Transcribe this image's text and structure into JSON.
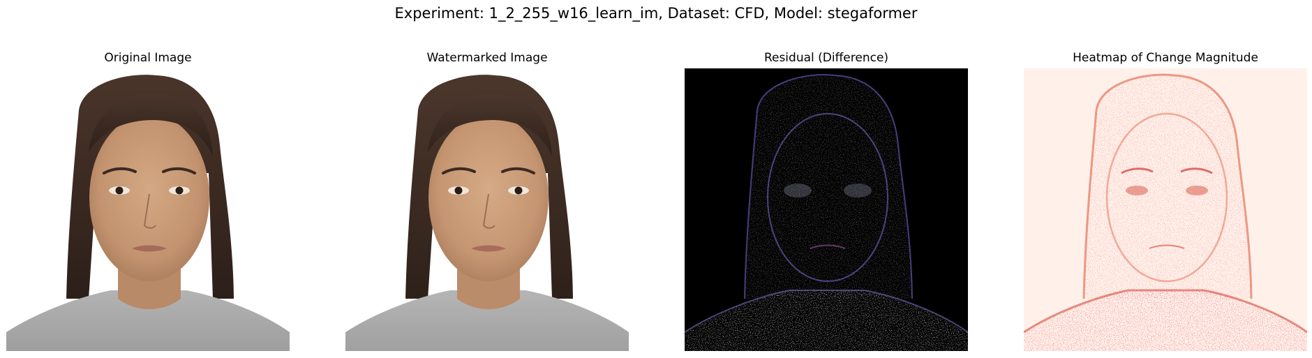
{
  "figure": {
    "suptitle": "Experiment: 1_2_255_w16_learn_im, Dataset: CFD, Model: stegaformer"
  },
  "panels": [
    {
      "title": "Original Image",
      "kind": "photo",
      "colormap": "none"
    },
    {
      "title": "Watermarked Image",
      "kind": "photo",
      "colormap": "none"
    },
    {
      "title": "Residual (Difference)",
      "kind": "residual",
      "colormap": "none"
    },
    {
      "title": "Heatmap of Change Magnitude",
      "kind": "heatmap",
      "colormap": "Reds"
    }
  ],
  "colors": {
    "background": "#ffffff",
    "photo_backdrop": "#ffffff",
    "skin": "#c89a78",
    "hair": "#3b2a22",
    "shirt": "#a9a9a9",
    "residual_backdrop": "#000000",
    "heatmap_low": "#fff1ea",
    "heatmap_high": "#cb181d"
  }
}
